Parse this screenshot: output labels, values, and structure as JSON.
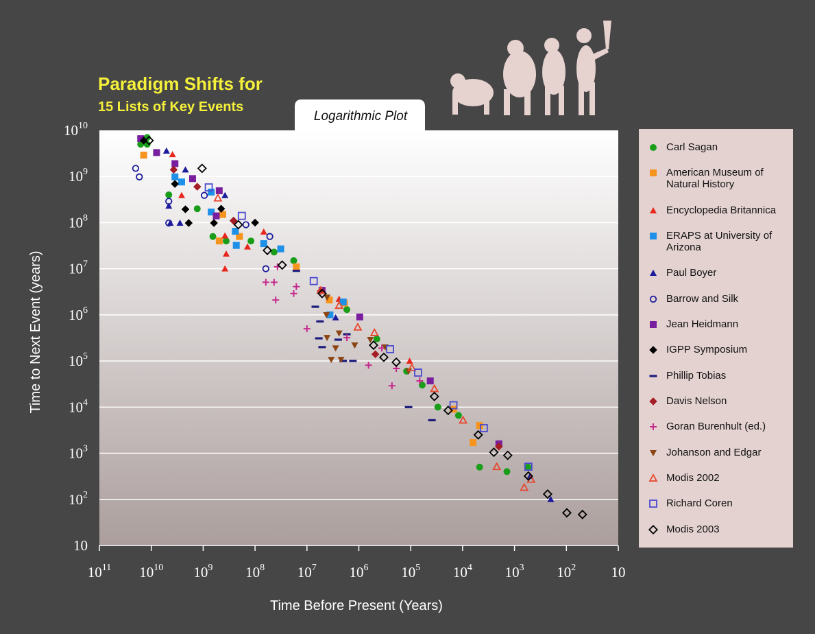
{
  "chart_data": {
    "type": "scatter",
    "title": "Paradigm Shifts for",
    "subtitle": "15 Lists of Key Events",
    "annotation": "Logarithmic Plot",
    "x_label": "Time Before Present (Years)",
    "y_label": "Time to Next Event (years)",
    "x_scale": "log",
    "y_scale": "log",
    "xlim": [
      100000000000.0,
      10
    ],
    "ylim": [
      10,
      10000000000.0
    ],
    "xticks": [
      {
        "value": 100000000000.0,
        "label": "10",
        "sup": "11"
      },
      {
        "value": 10000000000.0,
        "label": "10",
        "sup": "10"
      },
      {
        "value": 1000000000.0,
        "label": "10",
        "sup": "9"
      },
      {
        "value": 100000000.0,
        "label": "10",
        "sup": "8"
      },
      {
        "value": 10000000.0,
        "label": "10",
        "sup": "7"
      },
      {
        "value": 1000000.0,
        "label": "10",
        "sup": "6"
      },
      {
        "value": 100000.0,
        "label": "10",
        "sup": "5"
      },
      {
        "value": 10000.0,
        "label": "10",
        "sup": "4"
      },
      {
        "value": 1000.0,
        "label": "10",
        "sup": "3"
      },
      {
        "value": 100,
        "label": "10",
        "sup": "2"
      },
      10
    ],
    "yticks": [
      10,
      {
        "value": 100,
        "label": "10",
        "sup": "2"
      },
      {
        "value": 1000.0,
        "label": "10",
        "sup": "3"
      },
      {
        "value": 10000.0,
        "label": "10",
        "sup": "4"
      },
      {
        "value": 100000.0,
        "label": "10",
        "sup": "5"
      },
      {
        "value": 1000000.0,
        "label": "10",
        "sup": "6"
      },
      {
        "value": 10000000.0,
        "label": "10",
        "sup": "7"
      },
      {
        "value": 100000000.0,
        "label": "10",
        "sup": "8"
      },
      {
        "value": 1000000000.0,
        "label": "10",
        "sup": "9"
      },
      {
        "value": 10000000000.0,
        "label": "10",
        "sup": "10"
      }
    ],
    "grid": true,
    "legend": "right",
    "series": [
      {
        "name": "Carl Sagan",
        "color": "#1a9e1a",
        "marker": "circle",
        "x": [
          16000000000.0,
          12000000000.0,
          12000000000.0,
          4600000000.0,
          1300000000.0,
          650000000.0,
          360000000.0,
          120000000.0,
          43000000.0,
          18000000.0,
          1700000.0,
          450000.0,
          120000.0,
          60000.0,
          30000.0,
          12000.0,
          4700.0,
          1400.0,
          550.0
        ],
        "values": [
          5000000000.0,
          7000000000.0,
          5000000000.0,
          400000000.0,
          200000000.0,
          50000000.0,
          40000000.0,
          40000000.0,
          23000000.0,
          15000000.0,
          1300000.0,
          300000.0,
          60000.0,
          30000.0,
          10000.0,
          6600.0,
          500.0,
          400.0,
          500.0
        ]
      },
      {
        "name": "American Museum of Natural History",
        "color": "#f7941d",
        "marker": "square",
        "x": [
          14000000000.0,
          420000000.0,
          490000000.0,
          200000000.0,
          16000000.0,
          3700000.0,
          1900000.0,
          15000.0,
          6300.0,
          4700.0
        ],
        "values": [
          2900000000.0,
          150000000.0,
          40000000.0,
          50000000.0,
          11000000.0,
          2100000.0,
          1800000.0,
          9000.0,
          1700.0,
          4000.0
        ]
      },
      {
        "name": "Encyclopedia Britannica",
        "color": "#e8261c",
        "marker": "triangle",
        "x": [
          3900000000.0,
          2600000000.0,
          380000000.0,
          360000000.0,
          380000000.0,
          140000000.0,
          68000000.0,
          2400000.0,
          105000.0
        ],
        "values": [
          3000000000.0,
          390000000.0,
          52000000.0,
          21000000.0,
          10000000.0,
          30000000.0,
          63000000.0,
          2200000.0,
          100000.0
        ]
      },
      {
        "name": "ERAPS at University of Arizona",
        "color": "#1e90e8",
        "marker": "square",
        "x": [
          3500000000.0,
          2600000000.0,
          700000000.0,
          700000000.0,
          240000000.0,
          230000000.0,
          68000000.0,
          32000000.0,
          3600000.0,
          2000000.0
        ],
        "values": [
          980000000.0,
          760000000.0,
          460000000.0,
          170000000.0,
          65000000.0,
          32000000.0,
          35000000.0,
          27000000.0,
          1000000.0,
          1900000.0
        ]
      },
      {
        "name": "Paul Boyer",
        "color": "#1c1c9c",
        "marker": "triangle",
        "x": [
          5100000000.0,
          4600000000.0,
          4300000000.0,
          2200000000.0,
          2800000000.0,
          380000000.0,
          2800000.0,
          500.0,
          200.0
        ],
        "values": [
          3600000000.0,
          230000000.0,
          98000000.0,
          1400000000.0,
          98000000.0,
          390000000.0,
          870000.0,
          320.0,
          100.0
        ]
      },
      {
        "name": "Barrow and Silk",
        "color": "#1c1c9c",
        "marker": "open-circle",
        "x": [
          20000000000.0,
          17000000000.0,
          4600000000.0,
          4600000000.0,
          950000000.0,
          150000000.0,
          52000000.0,
          62000000.0
        ],
        "values": [
          1500000000.0,
          980000000.0,
          98000000.0,
          290000000.0,
          390000000.0,
          90000000.0,
          50000000.0,
          10000000.0
        ]
      },
      {
        "name": "Jean Heidmann",
        "color": "#7a1ea0",
        "marker": "square",
        "x": [
          16000000000.0,
          7900000000.0,
          3500000000.0,
          1600000000.0,
          490000000.0,
          560000000.0,
          5100000.0,
          960000.0,
          42000.0,
          2000.0
        ],
        "values": [
          6600000000.0,
          3300000000.0,
          1900000000.0,
          900000000.0,
          490000000.0,
          140000000.0,
          3400000.0,
          900000.0,
          37000.0,
          1600.0
        ]
      },
      {
        "name": "IGPP Symposium",
        "color": "#000000",
        "marker": "diamond",
        "x": [
          14000000000.0,
          3500000000.0,
          2200000000.0,
          1900000000.0,
          620000000.0,
          450000000.0,
          260000000.0,
          100000000.0
        ],
        "values": [
          6000000000.0,
          690000000.0,
          195000000.0,
          98000000.0,
          98000000.0,
          200000000.0,
          110000000.0,
          100000000.0
        ]
      },
      {
        "name": "Phillip Tobias",
        "color": "#1c1c7c",
        "marker": "dash",
        "x": [
          16000000.0,
          6900000.0,
          5600000.0,
          5900000.0,
          5100000.0,
          2500000.0,
          1700000.0,
          2000000.0,
          1300000.0,
          110000.0,
          39000.0
        ],
        "values": [
          9000000.0,
          1500000.0,
          720000.0,
          310000.0,
          200000.0,
          290000.0,
          380000.0,
          100000.0,
          100000.0,
          10000.0,
          5200.0
        ]
      },
      {
        "name": "Davis Nelson",
        "color": "#a51c24",
        "marker": "diamond",
        "x": [
          3700000000.0,
          1300000000.0,
          260000000.0,
          5400000.0,
          480000.0,
          2000.0
        ],
        "values": [
          1400000000.0,
          600000000.0,
          110000000.0,
          3300000.0,
          140000.0,
          1400.0
        ]
      },
      {
        "name": "Goran Burenhult (ed.)",
        "color": "#c4288c",
        "marker": "plus",
        "x": [
          62000000.0,
          43000000.0,
          40000000.0,
          37000000.0,
          18000000.0,
          16000000.0,
          10000000.0,
          1700000.0,
          650000.0,
          360000.0,
          230000.0,
          190000.0,
          67000.0
        ],
        "values": [
          5100000.0,
          5100000.0,
          2100000.0,
          11000000.0,
          2900000.0,
          4100000.0,
          500000.0,
          320000.0,
          81000.0,
          190000.0,
          29000.0,
          69000.0,
          37000.0
        ]
      },
      {
        "name": "Johanson and Edgar",
        "color": "#8b4513",
        "marker": "triangle-down",
        "x": [
          4100000.0,
          4200000.0,
          2400000.0,
          4100000.0,
          2800000.0,
          3400000.0,
          2200000.0,
          1200000.0,
          600000.0,
          310000.0,
          110000.0
        ],
        "values": [
          2400000.0,
          1000000.0,
          400000.0,
          320000.0,
          190000.0,
          107000.0,
          107000.0,
          220000.0,
          290000.0,
          200000.0,
          60000.0
        ]
      },
      {
        "name": "Modis 2002",
        "color": "#e8462c",
        "marker": "open-triangle",
        "x": [
          520000000.0,
          5400000.0,
          2400000.0,
          1050000.0,
          500000.0,
          95000.0,
          35000.0,
          9800.0,
          2200.0,
          650.0,
          480.0
        ],
        "values": [
          340000000.0,
          3400000.0,
          1600000.0,
          540000.0,
          410000.0,
          71000.0,
          25000.0,
          5200.0,
          510.0,
          180.0,
          270.0
        ]
      },
      {
        "name": "Richard Coren",
        "color": "#4a4ad0",
        "marker": "open-square",
        "x": [
          780000000.0,
          180000000.0,
          7400000.0,
          250000.0,
          72000.0,
          15000.0,
          3900.0,
          540.0
        ],
        "values": [
          580000000.0,
          140000000.0,
          5400000.0,
          180000.0,
          56000.0,
          11000.0,
          3500.0,
          510.0
        ]
      },
      {
        "name": "Modis 2003",
        "color": "#000000",
        "marker": "open-diamond",
        "x": [
          11000000000.0,
          1050000000.0,
          210000000.0,
          58000000.0,
          30000000.0,
          5100000.0,
          520000.0,
          330000.0,
          190000.0,
          35000.0,
          19000.0,
          5000.0,
          2500.0,
          1350.0,
          540.0,
          230.0,
          98,
          49
        ],
        "values": [
          6000000000.0,
          1500000000.0,
          90000000.0,
          25000000.0,
          12000000.0,
          2900000.0,
          220000.0,
          120000.0,
          94000.0,
          17000.0,
          8500.0,
          2500.0,
          1050.0,
          900.0,
          320.0,
          130.0,
          51,
          47
        ]
      }
    ]
  }
}
